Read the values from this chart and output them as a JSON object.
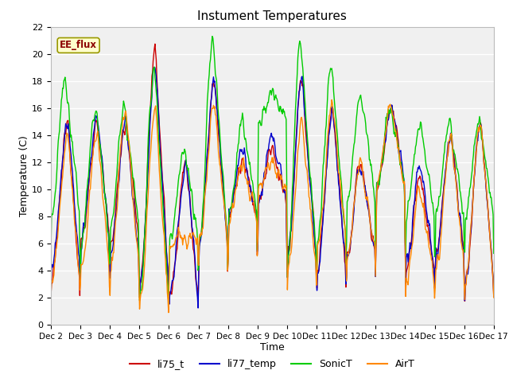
{
  "title": "Instument Temperatures",
  "xlabel": "Time",
  "ylabel": "Temperature (C)",
  "ylim": [
    0,
    22
  ],
  "yticks": [
    0,
    2,
    4,
    6,
    8,
    10,
    12,
    14,
    16,
    18,
    20,
    22
  ],
  "x_labels": [
    "Dec 2",
    "Dec 3",
    "Dec 4",
    "Dec 5",
    "Dec 6",
    "Dec 7",
    "Dec 8",
    "Dec 9",
    "Dec 10",
    "Dec 11",
    "Dec 12",
    "Dec 13",
    "Dec 14",
    "Dec 15",
    "Dec 16",
    "Dec 17"
  ],
  "colors": {
    "li75_t": "#cc0000",
    "li77_temp": "#0000cc",
    "SonicT": "#00cc00",
    "AirT": "#ff8800"
  },
  "legend_label": "EE_flux",
  "fig_bg": "#ffffff",
  "plot_bg": "#f0f0f0",
  "grid_color": "#ffffff",
  "linewidth": 1.0
}
